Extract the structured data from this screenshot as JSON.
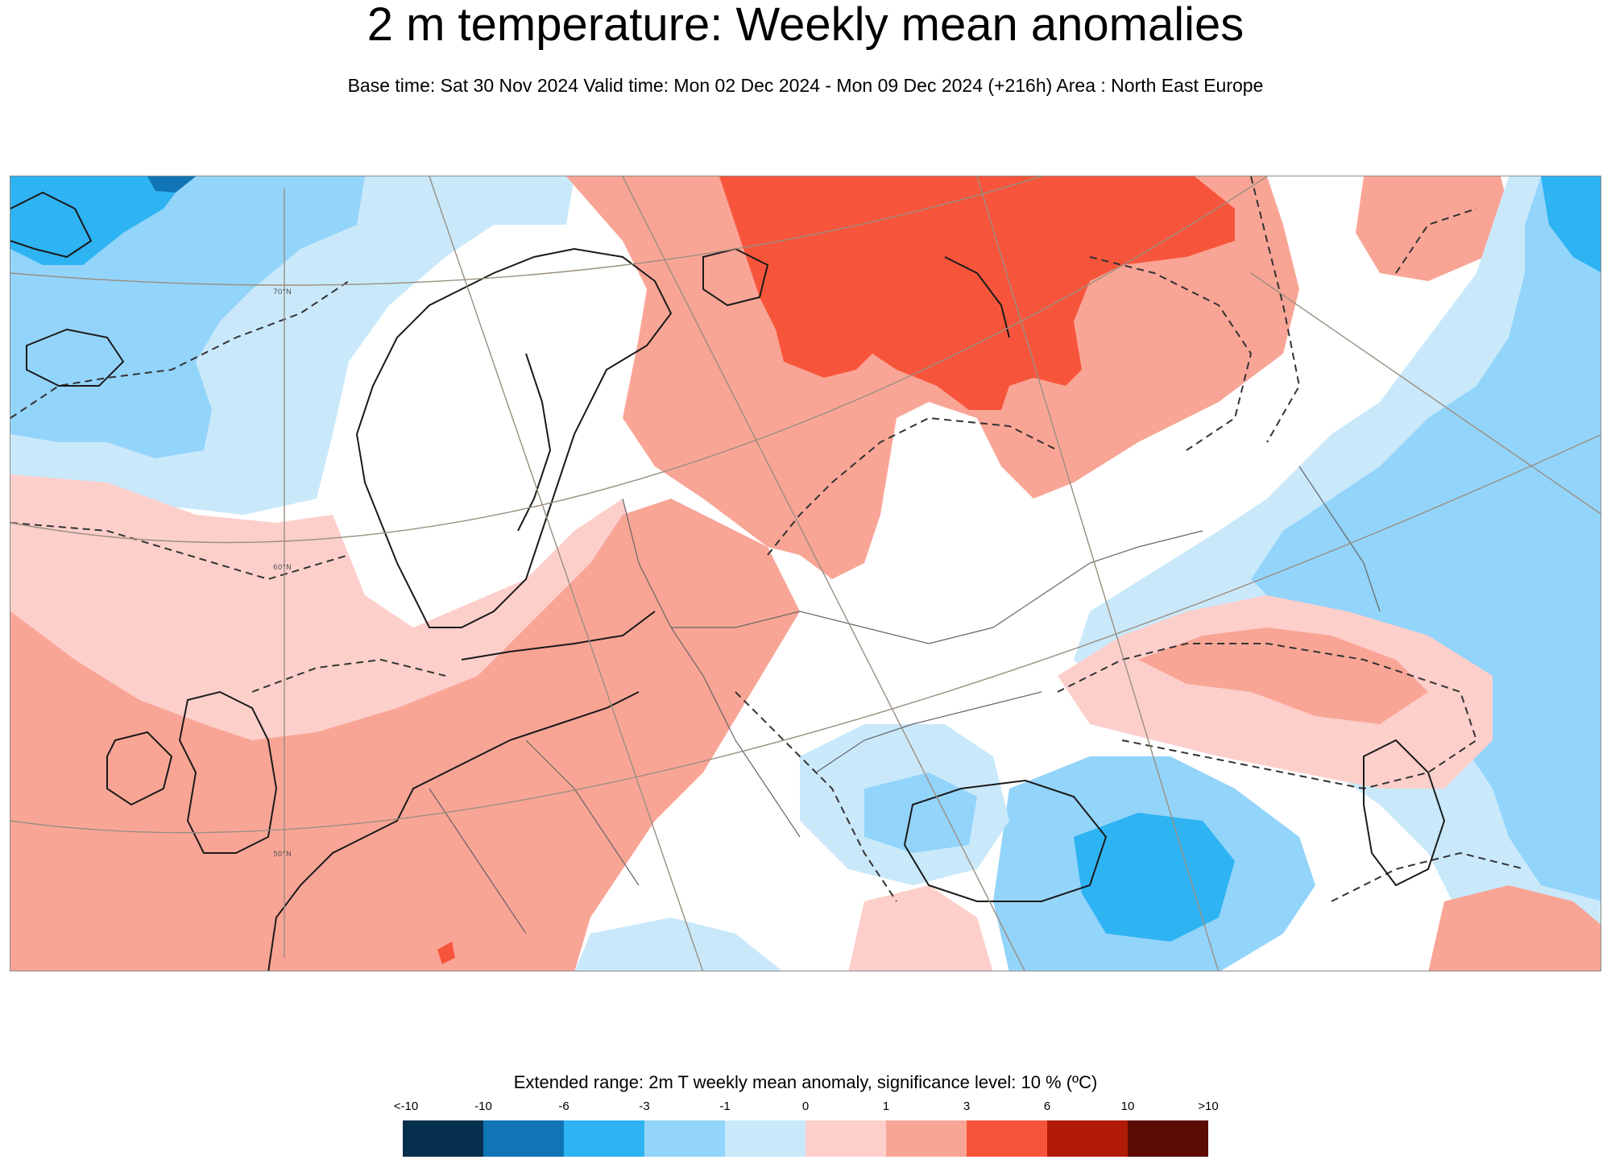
{
  "title": "2 m temperature: Weekly mean anomalies",
  "subtitle": "Base time: Sat 30 Nov 2024 Valid time: Mon 02 Dec 2024 - Mon 09 Dec 2024 (+216h) Area : North East Europe",
  "map": {
    "graticule_labels": [
      "70°N",
      "60°N",
      "50°N"
    ]
  },
  "legend": {
    "title": "Extended range: 2m T weekly mean anomaly, significance level: 10 % (ºC)",
    "ticks": [
      "<-10",
      "-10",
      "-6",
      "-3",
      "-1",
      "0",
      "1",
      "3",
      "6",
      "10",
      ">10"
    ],
    "colors": [
      "#062e4d",
      "#0f75b4",
      "#2eb3f3",
      "#93d4fa",
      "#c9e9fb",
      "#fdcfcb",
      "#f9a596",
      "#f7553b",
      "#b11a06",
      "#5b0c04"
    ]
  },
  "colors": {
    "land_outline": "#1a1a1a",
    "border": "#666666",
    "graticule": "#9a8e80",
    "dashed_contour": "#333333",
    "neutral": "#ffffff"
  }
}
